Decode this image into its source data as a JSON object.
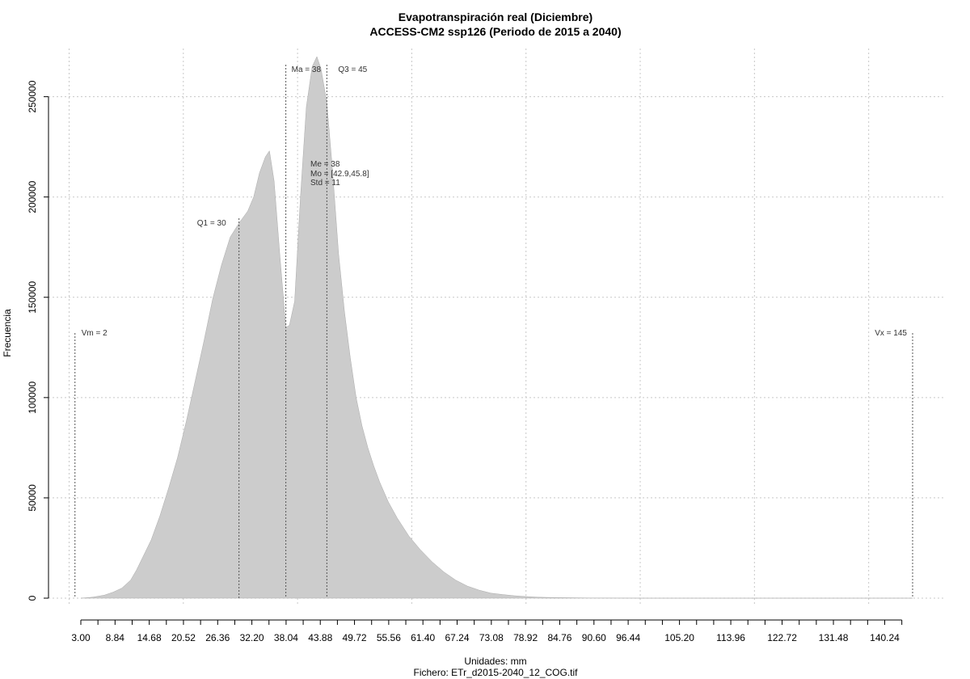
{
  "chart_data": {
    "type": "area",
    "title": "Evapotranspiración real (Diciembre)",
    "subtitle": "ACCESS-CM2 ssp126 (Periodo de 2015 a 2040)",
    "xlabel": "Unidades: mm",
    "ylabel": "Frecuencia",
    "caption": "Fichero: ETr_d2015-2040_12_COG.tif",
    "xlim": [
      3.0,
      145
    ],
    "ylim": [
      0,
      270000
    ],
    "grid": true,
    "fill_color": "#cccccc",
    "x_ticks": [
      3.0,
      5.92,
      8.84,
      11.76,
      14.68,
      17.6,
      20.52,
      23.44,
      26.36,
      29.28,
      32.2,
      35.12,
      38.04,
      40.96,
      43.88,
      46.8,
      49.72,
      52.64,
      55.56,
      58.48,
      61.4,
      64.32,
      67.24,
      70.16,
      73.08,
      76.0,
      78.92,
      81.84,
      84.76,
      87.68,
      90.6,
      93.52,
      96.44,
      99.36,
      102.28,
      105.2,
      108.12,
      111.04,
      113.96,
      116.88,
      119.8,
      122.72,
      125.64,
      128.56,
      131.48,
      134.4,
      137.32,
      140.24,
      143.16
    ],
    "x_tick_labels": [
      "3.00",
      "8.84",
      "14.68",
      "20.52",
      "26.36",
      "32.20",
      "38.04",
      "43.88",
      "49.72",
      "55.56",
      "61.40",
      "67.24",
      "73.08",
      "78.92",
      "84.76",
      "90.60",
      "96.44",
      "105.20",
      "113.96",
      "122.72",
      "131.48",
      "140.24"
    ],
    "x_tick_label_values": [
      3.0,
      8.84,
      14.68,
      20.52,
      26.36,
      32.2,
      38.04,
      43.88,
      49.72,
      55.56,
      61.4,
      67.24,
      73.08,
      78.92,
      84.76,
      90.6,
      96.44,
      105.2,
      113.96,
      122.72,
      131.48,
      140.24
    ],
    "x_grid": [
      1.0,
      20.5,
      40.0,
      59.5,
      79.0,
      98.5,
      118.0,
      137.5
    ],
    "y_ticks": [
      0,
      50000,
      100000,
      150000,
      200000,
      250000
    ],
    "y_tick_labels": [
      "0",
      "50000",
      "100000",
      "150000",
      "200000",
      "250000"
    ],
    "series": [
      {
        "x": [
          3.0,
          5.0,
          7.0,
          8.5,
          10.0,
          11.5,
          12.5,
          13.5,
          15.0,
          16.5,
          18.0,
          19.5,
          21.0,
          22.5,
          24.0,
          25.5,
          27.0,
          28.5,
          30.0,
          31.5,
          32.5,
          33.5,
          34.5,
          35.2,
          36.0,
          37.0,
          38.0,
          38.6,
          39.5,
          40.5,
          41.5,
          42.5,
          43.3,
          44.0,
          45.0,
          46.0,
          47.0,
          48.0,
          49.0,
          50.0,
          51.0,
          52.0,
          53.0,
          54.0,
          55.5,
          57.0,
          59.0,
          61.0,
          63.0,
          65.0,
          67.0,
          69.0,
          71.0,
          73.0,
          75.0,
          77.0,
          79.0,
          81.0,
          84.0,
          87.0,
          90.0,
          95.0,
          100.0,
          110.0,
          120.0,
          130.0,
          140.0,
          145.0
        ],
        "y": [
          0,
          500,
          1500,
          3000,
          5000,
          9000,
          14000,
          20000,
          29000,
          41000,
          55000,
          70000,
          88000,
          108000,
          128000,
          149000,
          166000,
          180000,
          187000,
          193000,
          200000,
          212000,
          220000,
          223000,
          208000,
          170000,
          135000,
          136000,
          148000,
          200000,
          245000,
          265000,
          270000,
          264000,
          247000,
          212000,
          172000,
          143000,
          120000,
          100000,
          86000,
          75000,
          66000,
          58000,
          48000,
          40000,
          31000,
          24000,
          18000,
          13000,
          9000,
          6000,
          4000,
          2500,
          1800,
          1200,
          800,
          500,
          300,
          200,
          100,
          50,
          20,
          0,
          0,
          0,
          0,
          0
        ]
      }
    ],
    "annotations": [
      {
        "id": "vm",
        "label": "Vm = 2",
        "x": 2
      },
      {
        "id": "q1",
        "label": "Q1 = 30",
        "x": 30
      },
      {
        "id": "ma",
        "label": "Ma = 38",
        "x": 38
      },
      {
        "id": "q3",
        "label": "Q3 = 45",
        "x": 45
      },
      {
        "id": "vx",
        "label": "Vx = 145",
        "x": 145
      }
    ],
    "stats": {
      "me": "Me = 38",
      "mo": "Mo = [42.9,45.8]",
      "std": "Std = 11"
    }
  }
}
